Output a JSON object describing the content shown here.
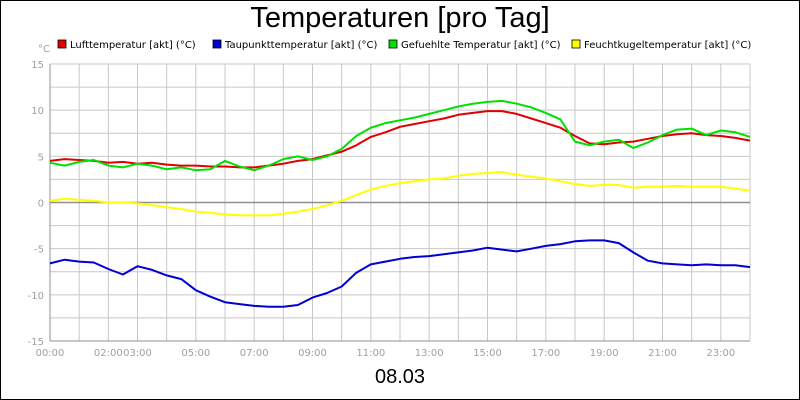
{
  "chart_data": {
    "type": "line",
    "title": "Temperaturen [pro Tag]",
    "xlabel": "08.03",
    "ylabel": "°C",
    "xlim": [
      0,
      24
    ],
    "ylim": [
      -15,
      15
    ],
    "y_ticks": [
      15,
      10,
      5,
      0,
      -5,
      -10,
      -15
    ],
    "y_tick_labels": [
      "15",
      "10",
      "5",
      "0",
      "-5",
      "-10",
      "-15"
    ],
    "x_ticks": [
      0,
      2,
      3,
      5,
      7,
      9,
      11,
      13,
      15,
      17,
      19,
      21,
      23
    ],
    "x_tick_labels": [
      "00:00",
      "02:00",
      "03:00",
      "05:00",
      "07:00",
      "09:00",
      "11:00",
      "13:00",
      "15:00",
      "17:00",
      "19:00",
      "21:00",
      "23:00"
    ],
    "grid": true,
    "legend_position": "top",
    "series": [
      {
        "name": "Lufttemperatur [akt] (°C)",
        "color": "#e00000",
        "x": [
          0,
          0.5,
          1,
          1.5,
          2,
          2.5,
          3,
          3.5,
          4,
          4.5,
          5,
          5.5,
          6,
          6.5,
          7,
          7.5,
          8,
          8.5,
          9,
          9.5,
          10,
          10.5,
          11,
          11.5,
          12,
          12.5,
          13,
          13.5,
          14,
          14.5,
          15,
          15.5,
          16,
          16.5,
          17,
          17.5,
          18,
          18.5,
          19,
          19.5,
          20,
          20.5,
          21,
          21.5,
          22,
          22.5,
          23,
          23.5,
          24
        ],
        "y": [
          4.5,
          4.7,
          4.6,
          4.5,
          4.3,
          4.4,
          4.2,
          4.3,
          4.1,
          4.0,
          4.0,
          3.9,
          3.9,
          3.8,
          3.8,
          4.0,
          4.2,
          4.5,
          4.7,
          5.1,
          5.5,
          6.2,
          7.1,
          7.6,
          8.2,
          8.5,
          8.8,
          9.1,
          9.5,
          9.7,
          9.9,
          9.9,
          9.6,
          9.1,
          8.6,
          8.1,
          7.2,
          6.4,
          6.3,
          6.5,
          6.6,
          6.9,
          7.2,
          7.4,
          7.5,
          7.3,
          7.2,
          7.0,
          6.7
        ]
      },
      {
        "name": "Taupunkttemperatur [akt] (°C)",
        "color": "#0000d0",
        "x": [
          0,
          0.5,
          1,
          1.5,
          2,
          2.5,
          3,
          3.5,
          4,
          4.5,
          5,
          5.5,
          6,
          6.5,
          7,
          7.5,
          8,
          8.5,
          9,
          9.5,
          10,
          10.5,
          11,
          11.5,
          12,
          12.5,
          13,
          13.5,
          14,
          14.5,
          15,
          15.5,
          16,
          16.5,
          17,
          17.5,
          18,
          18.5,
          19,
          19.5,
          20,
          20.5,
          21,
          21.5,
          22,
          22.5,
          23,
          23.5,
          24
        ],
        "y": [
          -6.6,
          -6.2,
          -6.4,
          -6.5,
          -7.2,
          -7.8,
          -6.9,
          -7.3,
          -7.9,
          -8.3,
          -9.5,
          -10.2,
          -10.8,
          -11.0,
          -11.2,
          -11.3,
          -11.3,
          -11.1,
          -10.3,
          -9.8,
          -9.1,
          -7.6,
          -6.7,
          -6.4,
          -6.1,
          -5.9,
          -5.8,
          -5.6,
          -5.4,
          -5.2,
          -4.9,
          -5.1,
          -5.3,
          -5.0,
          -4.7,
          -4.5,
          -4.2,
          -4.1,
          -4.1,
          -4.4,
          -5.4,
          -6.3,
          -6.6,
          -6.7,
          -6.8,
          -6.7,
          -6.8,
          -6.8,
          -7.0
        ]
      },
      {
        "name": "Gefuehlte Temperatur [akt] (°C)",
        "color": "#00e000",
        "x": [
          0,
          0.5,
          1,
          1.5,
          2,
          2.5,
          3,
          3.5,
          4,
          4.5,
          5,
          5.5,
          6,
          6.5,
          7,
          7.5,
          8,
          8.5,
          9,
          9.5,
          10,
          10.5,
          11,
          11.5,
          12,
          12.5,
          13,
          13.5,
          14,
          14.5,
          15,
          15.5,
          16,
          16.5,
          17,
          17.5,
          18,
          18.5,
          19,
          19.5,
          20,
          20.5,
          21,
          21.5,
          22,
          22.5,
          23,
          23.5,
          24
        ],
        "y": [
          4.3,
          4.0,
          4.4,
          4.6,
          4.0,
          3.8,
          4.2,
          4.0,
          3.6,
          3.8,
          3.5,
          3.6,
          4.5,
          3.9,
          3.5,
          4.0,
          4.7,
          5.0,
          4.6,
          5.0,
          5.8,
          7.2,
          8.1,
          8.6,
          8.9,
          9.2,
          9.6,
          10.0,
          10.4,
          10.7,
          10.9,
          11.0,
          10.7,
          10.3,
          9.7,
          9.0,
          6.6,
          6.2,
          6.6,
          6.8,
          5.9,
          6.5,
          7.3,
          7.9,
          8.0,
          7.3,
          7.8,
          7.6,
          7.1
        ]
      },
      {
        "name": "Feuchtkugeltemperatur [akt] (°C)",
        "color": "#ffff00",
        "x": [
          0,
          0.5,
          1,
          1.5,
          2,
          2.5,
          3,
          3.5,
          4,
          4.5,
          5,
          5.5,
          6,
          6.5,
          7,
          7.5,
          8,
          8.5,
          9,
          9.5,
          10,
          10.5,
          11,
          11.5,
          12,
          12.5,
          13,
          13.5,
          14,
          14.5,
          15,
          15.5,
          16,
          16.5,
          17,
          17.5,
          18,
          18.5,
          19,
          19.5,
          20,
          20.5,
          21,
          21.5,
          22,
          22.5,
          23,
          23.5,
          24
        ],
        "y": [
          0.2,
          0.4,
          0.3,
          0.2,
          0.0,
          0.0,
          -0.1,
          -0.3,
          -0.5,
          -0.7,
          -1.0,
          -1.1,
          -1.3,
          -1.4,
          -1.4,
          -1.4,
          -1.2,
          -1.0,
          -0.7,
          -0.3,
          0.2,
          0.8,
          1.4,
          1.8,
          2.1,
          2.3,
          2.5,
          2.6,
          2.9,
          3.1,
          3.2,
          3.3,
          3.0,
          2.8,
          2.6,
          2.3,
          2.0,
          1.8,
          1.9,
          1.9,
          1.6,
          1.7,
          1.7,
          1.8,
          1.7,
          1.7,
          1.7,
          1.5,
          1.3
        ]
      }
    ]
  }
}
